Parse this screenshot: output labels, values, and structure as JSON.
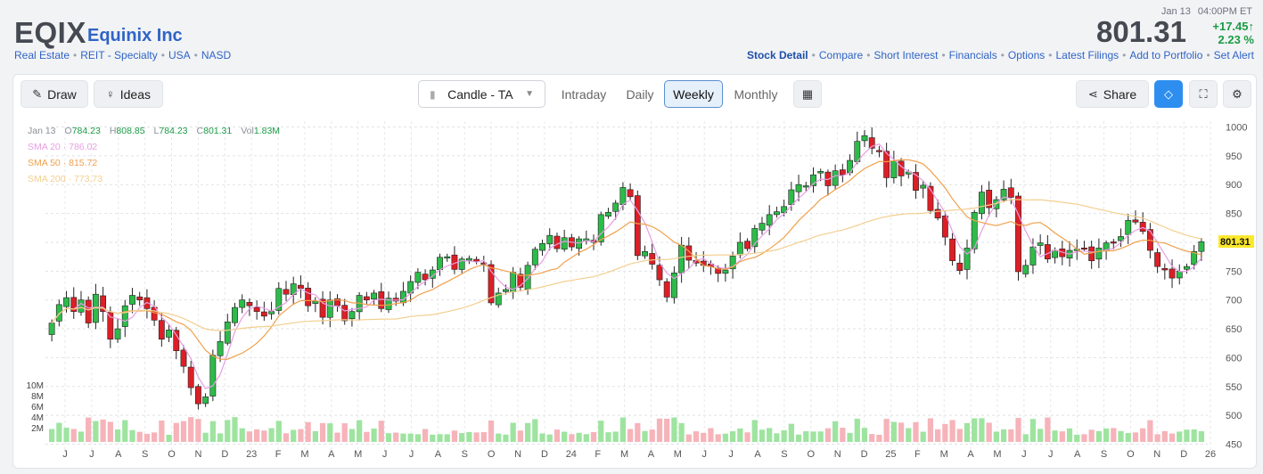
{
  "header": {
    "ticker": "EQIX",
    "company": "Equinix Inc",
    "tags": [
      "Real Estate",
      "REIT - Specialty",
      "USA",
      "NASD"
    ],
    "date": "Jan 13",
    "time": "04:00PM ET",
    "price": "801.31",
    "change": "+17.45",
    "change_pct": "2.23 %",
    "nav": [
      "Stock Detail",
      "Compare",
      "Short Interest",
      "Financials",
      "Options",
      "Latest Filings",
      "Add to Portfolio",
      "Set Alert"
    ]
  },
  "toolbar": {
    "draw": "Draw",
    "ideas": "Ideas",
    "chart_type": "Candle - TA",
    "periods": [
      "Intraday",
      "Daily",
      "Weekly",
      "Monthly"
    ],
    "selected_period": "Weekly",
    "share": "Share"
  },
  "legend": {
    "date": "Jan 13",
    "open_label": "O",
    "open": "784.23",
    "high_label": "H",
    "high": "808.85",
    "low_label": "L",
    "low": "784.23",
    "close_label": "C",
    "close": "801.31",
    "vol_label": "Vol",
    "vol": "1.83M",
    "sma20": "SMA 20 · 786.02",
    "sma50": "SMA 50 · 815.72",
    "sma200": "SMA 200 · 773.73"
  },
  "colors": {
    "up": "#2dbb4a",
    "down": "#dc1f26",
    "sma20": "#e79ee3",
    "sma50": "#f0a04b",
    "sma200": "#f3cf8f",
    "price_tag": "#fbe82b"
  },
  "chart_data": {
    "type": "candlestick",
    "y_ticks": [
      1000,
      950,
      900,
      850,
      800,
      750,
      700,
      650,
      600,
      550,
      500,
      450
    ],
    "ylim": [
      440,
      1010
    ],
    "volume_ticks": [
      "10M",
      "8M",
      "6M",
      "4M",
      "2M"
    ],
    "x_ticks": [
      "J",
      "J",
      "A",
      "S",
      "O",
      "N",
      "D",
      "23",
      "F",
      "M",
      "A",
      "M",
      "J",
      "J",
      "A",
      "S",
      "O",
      "N",
      "D",
      "24",
      "F",
      "M",
      "A",
      "M",
      "J",
      "J",
      "A",
      "S",
      "O",
      "N",
      "D",
      "25",
      "F",
      "M",
      "A",
      "M",
      "J",
      "J",
      "A",
      "S",
      "O",
      "N",
      "D",
      "26"
    ],
    "last_price": "801.31",
    "closes": [
      660,
      692,
      704,
      680,
      700,
      660,
      710,
      680,
      632,
      650,
      690,
      708,
      700,
      685,
      665,
      632,
      648,
      612,
      585,
      548,
      520,
      532,
      604,
      628,
      662,
      687,
      700,
      690,
      680,
      672,
      680,
      720,
      710,
      728,
      720,
      690,
      698,
      670,
      700,
      690,
      664,
      680,
      708,
      700,
      712,
      685,
      703,
      698,
      715,
      732,
      748,
      735,
      752,
      774,
      775,
      753,
      771,
      772,
      767,
      764,
      695,
      712,
      718,
      748,
      722,
      760,
      788,
      798,
      812,
      789,
      808,
      792,
      806,
      806,
      800,
      848,
      852,
      868,
      895,
      879,
      777,
      784,
      762,
      735,
      705,
      747,
      795,
      769,
      764,
      760,
      758,
      746,
      752,
      776,
      800,
      789,
      824,
      833,
      848,
      853,
      862,
      891,
      900,
      898,
      917,
      923,
      898,
      924,
      917,
      942,
      975,
      985,
      963,
      958,
      912,
      941,
      915,
      922,
      890,
      899,
      855,
      842,
      809,
      768,
      751,
      790,
      852,
      887,
      860,
      874,
      892,
      878,
      749,
      760,
      792,
      799,
      771,
      786,
      775,
      786,
      788,
      790,
      768,
      790,
      799,
      800,
      810,
      838,
      835,
      819,
      786,
      758,
      752,
      738,
      750,
      758,
      784,
      801
    ],
    "sma20_final": 786.02,
    "sma50_final": 815.72,
    "sma200_final": 773.73
  }
}
